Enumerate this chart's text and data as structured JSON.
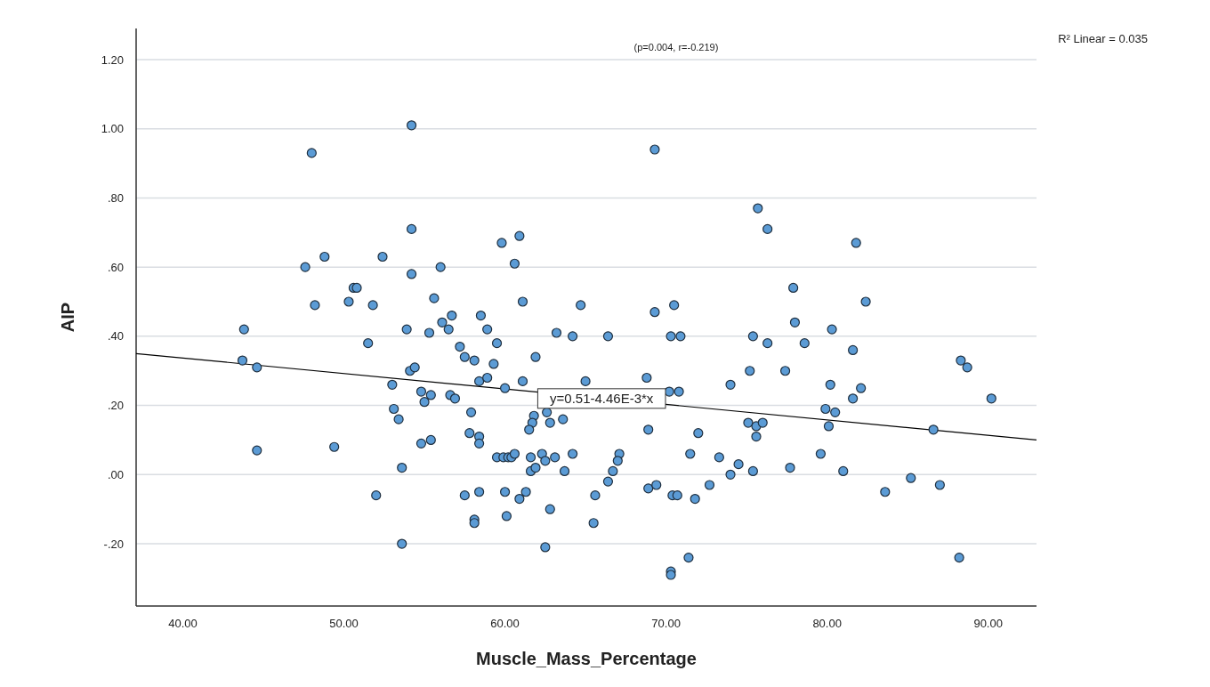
{
  "chart_data": {
    "type": "scatter",
    "xlabel": "Muscle_Mass_Percentage",
    "ylabel": "AIP",
    "xlim": [
      37.1,
      93.0
    ],
    "ylim": [
      -0.38,
      1.29
    ],
    "xticks": [
      {
        "value": 40,
        "label": "40.00"
      },
      {
        "value": 50,
        "label": "50.00"
      },
      {
        "value": 60,
        "label": "60.00"
      },
      {
        "value": 70,
        "label": "70.00"
      },
      {
        "value": 80,
        "label": "80.00"
      },
      {
        "value": 90,
        "label": "90.00"
      }
    ],
    "yticks": [
      {
        "value": -0.2,
        "label": "-.20"
      },
      {
        "value": 0,
        "label": ".00"
      },
      {
        "value": 0.2,
        "label": ".20"
      },
      {
        "value": 0.4,
        "label": ".40"
      },
      {
        "value": 0.6,
        "label": ".60"
      },
      {
        "value": 0.8,
        "label": ".80"
      },
      {
        "value": 1.0,
        "label": "1.00"
      },
      {
        "value": 1.2,
        "label": "1.20"
      }
    ],
    "grid": "y",
    "marker": "circle",
    "annotations": [
      "(p=0.004, r=-0.219)",
      "R² Linear = 0.035",
      {
        "text": "y=0.51-4.46E-3*x",
        "x": 66.0,
        "y": 0.22
      }
    ],
    "series": [
      {
        "color": "#5b9bd5",
        "x": [
          54.2,
          48.0,
          54.2,
          48.8,
          52.4,
          47.6,
          54.2,
          56.0,
          50.6,
          50.8,
          48.2,
          50.3,
          51.8,
          55.6,
          56.1,
          43.8,
          53.9,
          55.3,
          69.3,
          60.9,
          59.8,
          60.6,
          61.1,
          64.7,
          69.3,
          70.5,
          56.7,
          56.5,
          58.5,
          58.9,
          63.2,
          75.7,
          76.3,
          81.8,
          77.9,
          82.4,
          78.0,
          80.3,
          51.5,
          43.7,
          44.6,
          54.1,
          54.4,
          53.0,
          54.8,
          55.4,
          55.0,
          53.1,
          53.4,
          44.6,
          49.4,
          54.8,
          55.4,
          53.6,
          52.0,
          53.6,
          64.2,
          66.4,
          70.3,
          70.9,
          75.4,
          57.2,
          57.5,
          58.1,
          59.5,
          59.3,
          61.9,
          58.4,
          58.9,
          60.0,
          61.1,
          65.0,
          68.8,
          70.2,
          70.8,
          74.0,
          75.2,
          56.6,
          56.9,
          57.9,
          61.8,
          61.7,
          61.5,
          62.6,
          62.8,
          63.6,
          57.8,
          58.4,
          58.4,
          68.9,
          72.0,
          75.1,
          59.5,
          59.9,
          60.2,
          60.4,
          60.6,
          61.6,
          62.3,
          62.5,
          63.1,
          64.2,
          61.6,
          61.9,
          63.7,
          67.1,
          67.0,
          66.7,
          66.4,
          71.5,
          73.3,
          74.5,
          74.0,
          68.9,
          69.4,
          72.7,
          57.5,
          58.4,
          60.0,
          61.3,
          60.9,
          65.6,
          70.4,
          70.7,
          71.8,
          62.8,
          58.1,
          58.1,
          60.1,
          65.5,
          62.5,
          71.4,
          70.3,
          70.3,
          76.3,
          78.6,
          81.6,
          77.4,
          80.2,
          82.1,
          81.6,
          90.2,
          88.3,
          88.7,
          79.9,
          80.5,
          75.6,
          76.0,
          80.1,
          75.6,
          86.6,
          79.6,
          75.4,
          77.7,
          81.0,
          83.6,
          85.2,
          87.0,
          88.2
        ],
        "values": [
          1.01,
          0.93,
          0.71,
          0.63,
          0.63,
          0.6,
          0.58,
          0.6,
          0.54,
          0.54,
          0.49,
          0.5,
          0.49,
          0.51,
          0.44,
          0.42,
          0.42,
          0.41,
          0.94,
          0.69,
          0.67,
          0.61,
          0.5,
          0.49,
          0.47,
          0.49,
          0.46,
          0.42,
          0.46,
          0.42,
          0.41,
          0.77,
          0.71,
          0.67,
          0.54,
          0.5,
          0.44,
          0.42,
          0.38,
          0.33,
          0.31,
          0.3,
          0.31,
          0.26,
          0.24,
          0.23,
          0.21,
          0.19,
          0.16,
          0.07,
          0.08,
          0.09,
          0.1,
          0.02,
          -0.06,
          -0.2,
          0.4,
          0.4,
          0.4,
          0.4,
          0.4,
          0.37,
          0.34,
          0.33,
          0.38,
          0.32,
          0.34,
          0.27,
          0.28,
          0.25,
          0.27,
          0.27,
          0.28,
          0.24,
          0.24,
          0.26,
          0.3,
          0.23,
          0.22,
          0.18,
          0.17,
          0.15,
          0.13,
          0.18,
          0.15,
          0.16,
          0.12,
          0.11,
          0.09,
          0.13,
          0.12,
          0.15,
          0.05,
          0.05,
          0.05,
          0.05,
          0.06,
          0.05,
          0.06,
          0.04,
          0.05,
          0.06,
          0.01,
          0.02,
          0.01,
          0.06,
          0.04,
          0.01,
          -0.02,
          0.06,
          0.05,
          0.03,
          0.0,
          -0.04,
          -0.03,
          -0.03,
          -0.06,
          -0.05,
          -0.05,
          -0.05,
          -0.07,
          -0.06,
          -0.06,
          -0.06,
          -0.07,
          -0.1,
          -0.13,
          -0.14,
          -0.12,
          -0.14,
          -0.21,
          -0.24,
          -0.28,
          -0.29,
          0.38,
          0.38,
          0.36,
          0.3,
          0.26,
          0.25,
          0.22,
          0.22,
          0.33,
          0.31,
          0.19,
          0.18,
          0.14,
          0.15,
          0.14,
          0.11,
          0.13,
          0.06,
          0.01,
          0.02,
          0.01,
          -0.05,
          -0.01,
          -0.03,
          -0.24
        ]
      },
      {
        "type": "line",
        "marker": "none",
        "color": "#000000",
        "x": [
          37.1,
          93.0
        ],
        "values": [
          0.35,
          0.1
        ]
      }
    ]
  }
}
